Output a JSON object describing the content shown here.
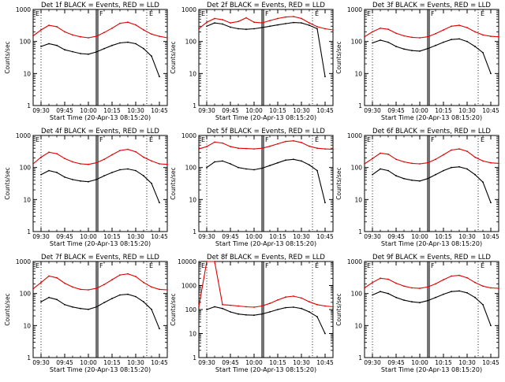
{
  "figure": {
    "x_tick_labels": [
      "09:30",
      "09:45",
      "10:00",
      "10:15",
      "10:30",
      "10:45"
    ],
    "y_tick_labels": [
      "1",
      "10",
      "100",
      "1000"
    ],
    "panel_y_tick_labels": [
      [
        "1",
        "10",
        "100",
        "1000"
      ],
      [
        "1",
        "10",
        "100",
        "1000"
      ],
      [
        "1",
        "10",
        "100",
        "1000"
      ],
      [
        "1",
        "10",
        "100",
        "1000"
      ],
      [
        "1",
        "10",
        "100",
        "1000"
      ],
      [
        "1",
        "10",
        "100",
        "1000"
      ],
      [
        "1",
        "10",
        "100",
        "1000"
      ],
      [
        "1",
        "10",
        "100",
        "1000",
        "10000"
      ],
      [
        "1",
        "10",
        "100",
        "1000"
      ]
    ],
    "xlabel": "Start Time (20-Apr-13 08:15:20)",
    "ylabel": "Counts/sec",
    "colors": {
      "events": "#000000",
      "lld": "#e00000",
      "axes": "#000000",
      "background": "#ffffff"
    }
  },
  "chart_data": [
    {
      "type": "line",
      "title": "Det 1f BLACK = Events, RED = LLD",
      "yscale": "log",
      "ylim": [
        1,
        1000
      ],
      "x_ticks": [
        "09:30",
        "09:45",
        "10:00",
        "10:15",
        "10:30",
        "10:45"
      ],
      "x": [
        "09:25",
        "09:30",
        "09:35",
        "09:40",
        "09:45",
        "09:50",
        "09:55",
        "10:00",
        "10:05",
        "10:10",
        "10:15",
        "10:20",
        "10:25",
        "10:30",
        "10:35",
        "10:40",
        "10:45",
        "10:50"
      ],
      "series": [
        {
          "name": "Events",
          "color": "#000000",
          "values": [
            null,
            70,
            85,
            75,
            55,
            48,
            42,
            40,
            47,
            60,
            75,
            90,
            95,
            85,
            60,
            35,
            8,
            null
          ]
        },
        {
          "name": "LLD",
          "color": "#e00000",
          "values": [
            150,
            230,
            320,
            290,
            200,
            160,
            140,
            130,
            145,
            190,
            260,
            370,
            400,
            330,
            230,
            170,
            145,
            130
          ]
        }
      ],
      "markers": {
        "dotted_vertical": [
          "09:30",
          "10:37"
        ],
        "solid_vertical": [
          "10:05",
          "10:06"
        ],
        "corner_labels": [
          "E",
          "F",
          "E"
        ]
      }
    },
    {
      "type": "line",
      "title": "Det 2f BLACK = Events, RED = LLD",
      "yscale": "log",
      "ylim": [
        1,
        1000
      ],
      "x_ticks": [
        "09:30",
        "09:45",
        "10:00",
        "10:15",
        "10:30",
        "10:45"
      ],
      "x": [
        "09:25",
        "09:30",
        "09:35",
        "09:40",
        "09:45",
        "09:50",
        "09:55",
        "10:00",
        "10:05",
        "10:10",
        "10:15",
        "10:20",
        "10:25",
        "10:30",
        "10:35",
        "10:40",
        "10:45",
        "10:50"
      ],
      "series": [
        {
          "name": "Events",
          "color": "#000000",
          "values": [
            null,
            300,
            380,
            350,
            280,
            250,
            240,
            250,
            270,
            300,
            330,
            360,
            390,
            380,
            320,
            250,
            8,
            null
          ]
        },
        {
          "name": "LLD",
          "color": "#e00000",
          "values": [
            250,
            400,
            520,
            480,
            380,
            420,
            550,
            400,
            380,
            450,
            520,
            580,
            600,
            520,
            380,
            290,
            250,
            230
          ]
        }
      ],
      "markers": {
        "dotted_vertical": [
          "09:30",
          "10:37"
        ],
        "solid_vertical": [
          "10:05",
          "10:06"
        ],
        "corner_labels": [
          "E",
          "F",
          "E"
        ]
      }
    },
    {
      "type": "line",
      "title": "Det 3f BLACK = Events, RED = LLD",
      "yscale": "log",
      "ylim": [
        1,
        1000
      ],
      "x_ticks": [
        "09:30",
        "09:45",
        "10:00",
        "10:15",
        "10:30",
        "10:45"
      ],
      "x": [
        "09:25",
        "09:30",
        "09:35",
        "09:40",
        "09:45",
        "09:50",
        "09:55",
        "10:00",
        "10:05",
        "10:10",
        "10:15",
        "10:20",
        "10:25",
        "10:30",
        "10:35",
        "10:40",
        "10:45",
        "10:50"
      ],
      "series": [
        {
          "name": "Events",
          "color": "#000000",
          "values": [
            null,
            90,
            110,
            95,
            70,
            58,
            52,
            50,
            60,
            75,
            95,
            115,
            120,
            100,
            70,
            45,
            10,
            null
          ]
        },
        {
          "name": "LLD",
          "color": "#e00000",
          "values": [
            140,
            200,
            260,
            240,
            180,
            150,
            135,
            130,
            140,
            175,
            230,
            300,
            320,
            270,
            200,
            160,
            145,
            140
          ]
        }
      ],
      "markers": {
        "dotted_vertical": [
          "09:30",
          "10:37"
        ],
        "solid_vertical": [
          "10:05",
          "10:06"
        ],
        "corner_labels": [
          "E",
          "F",
          "E"
        ]
      }
    },
    {
      "type": "line",
      "title": "Det 4f BLACK = Events, RED = LLD",
      "yscale": "log",
      "ylim": [
        1,
        1000
      ],
      "x_ticks": [
        "09:30",
        "09:45",
        "10:00",
        "10:15",
        "10:30",
        "10:45"
      ],
      "x": [
        "09:25",
        "09:30",
        "09:35",
        "09:40",
        "09:45",
        "09:50",
        "09:55",
        "10:00",
        "10:05",
        "10:10",
        "10:15",
        "10:20",
        "10:25",
        "10:30",
        "10:35",
        "10:40",
        "10:45",
        "10:50"
      ],
      "series": [
        {
          "name": "Events",
          "color": "#000000",
          "values": [
            null,
            60,
            80,
            70,
            50,
            42,
            38,
            36,
            42,
            55,
            70,
            85,
            90,
            80,
            55,
            32,
            8,
            null
          ]
        },
        {
          "name": "LLD",
          "color": "#e00000",
          "values": [
            130,
            210,
            300,
            270,
            190,
            150,
            130,
            125,
            140,
            180,
            250,
            340,
            370,
            310,
            210,
            160,
            130,
            125
          ]
        }
      ],
      "markers": {
        "dotted_vertical": [
          "09:30",
          "10:37"
        ],
        "solid_vertical": [
          "10:05",
          "10:06"
        ],
        "corner_labels": [
          "E",
          "F",
          "E"
        ]
      }
    },
    {
      "type": "line",
      "title": "Det 5f BLACK = Events, RED = LLD",
      "yscale": "log",
      "ylim": [
        1,
        1000
      ],
      "x_ticks": [
        "09:30",
        "09:45",
        "10:00",
        "10:15",
        "10:30",
        "10:45"
      ],
      "x": [
        "09:25",
        "09:30",
        "09:35",
        "09:40",
        "09:45",
        "09:50",
        "09:55",
        "10:00",
        "10:05",
        "10:10",
        "10:15",
        "10:20",
        "10:25",
        "10:30",
        "10:35",
        "10:40",
        "10:45",
        "10:50"
      ],
      "series": [
        {
          "name": "Events",
          "color": "#000000",
          "values": [
            null,
            100,
            150,
            160,
            130,
            100,
            90,
            85,
            95,
            115,
            140,
            170,
            180,
            160,
            120,
            80,
            8,
            null
          ]
        },
        {
          "name": "LLD",
          "color": "#e00000",
          "values": [
            380,
            450,
            620,
            580,
            450,
            400,
            390,
            380,
            400,
            460,
            550,
            650,
            680,
            600,
            460,
            400,
            380,
            370
          ]
        }
      ],
      "markers": {
        "dotted_vertical": [
          "09:30",
          "10:37"
        ],
        "solid_vertical": [
          "10:05",
          "10:06"
        ],
        "corner_labels": [
          "E",
          "F",
          "E"
        ]
      }
    },
    {
      "type": "line",
      "title": "Det 6f BLACK = Events, RED = LLD",
      "yscale": "log",
      "ylim": [
        1,
        1000
      ],
      "x_ticks": [
        "09:30",
        "09:45",
        "10:00",
        "10:15",
        "10:30",
        "10:45"
      ],
      "x": [
        "09:25",
        "09:30",
        "09:35",
        "09:40",
        "09:45",
        "09:50",
        "09:55",
        "10:00",
        "10:05",
        "10:10",
        "10:15",
        "10:20",
        "10:25",
        "10:30",
        "10:35",
        "10:40",
        "10:45",
        "10:50"
      ],
      "series": [
        {
          "name": "Events",
          "color": "#000000",
          "values": [
            null,
            60,
            90,
            80,
            55,
            45,
            40,
            38,
            45,
            60,
            80,
            100,
            105,
            90,
            60,
            35,
            8,
            null
          ]
        },
        {
          "name": "LLD",
          "color": "#e00000",
          "values": [
            130,
            190,
            280,
            260,
            180,
            150,
            135,
            130,
            140,
            180,
            250,
            350,
            380,
            320,
            210,
            160,
            140,
            135
          ]
        }
      ],
      "markers": {
        "dotted_vertical": [
          "09:30",
          "10:37"
        ],
        "solid_vertical": [
          "10:05",
          "10:06"
        ],
        "corner_labels": [
          "E",
          "F",
          "E"
        ]
      }
    },
    {
      "type": "line",
      "title": "Det 7f BLACK = Events, RED = LLD",
      "yscale": "log",
      "ylim": [
        1,
        1000
      ],
      "x_ticks": [
        "09:30",
        "09:45",
        "10:00",
        "10:15",
        "10:30",
        "10:45"
      ],
      "x": [
        "09:25",
        "09:30",
        "09:35",
        "09:40",
        "09:45",
        "09:50",
        "09:55",
        "10:00",
        "10:05",
        "10:10",
        "10:15",
        "10:20",
        "10:25",
        "10:30",
        "10:35",
        "10:40",
        "10:45",
        "10:50"
      ],
      "series": [
        {
          "name": "Events",
          "color": "#000000",
          "values": [
            null,
            55,
            75,
            65,
            45,
            38,
            34,
            32,
            38,
            52,
            70,
            90,
            95,
            80,
            55,
            32,
            8,
            null
          ]
        },
        {
          "name": "LLD",
          "color": "#e00000",
          "values": [
            140,
            220,
            350,
            310,
            210,
            160,
            135,
            130,
            145,
            190,
            270,
            380,
            410,
            340,
            220,
            160,
            135,
            130
          ]
        }
      ],
      "markers": {
        "dotted_vertical": [
          "09:30",
          "10:37"
        ],
        "solid_vertical": [
          "10:05",
          "10:06"
        ],
        "corner_labels": [
          "E",
          "F",
          "E"
        ]
      }
    },
    {
      "type": "line",
      "title": "Det 8f BLACK = Events, RED = LLD",
      "yscale": "log",
      "ylim": [
        1,
        10000
      ],
      "x_ticks": [
        "09:30",
        "09:45",
        "10:00",
        "10:15",
        "10:30",
        "10:45"
      ],
      "x": [
        "09:25",
        "09:30",
        "09:35",
        "09:40",
        "09:45",
        "09:50",
        "09:55",
        "10:00",
        "10:05",
        "10:10",
        "10:15",
        "10:20",
        "10:25",
        "10:30",
        "10:35",
        "10:40",
        "10:45",
        "10:50"
      ],
      "series": [
        {
          "name": "Events",
          "color": "#000000",
          "values": [
            null,
            100,
            130,
            110,
            80,
            65,
            60,
            58,
            65,
            80,
            100,
            120,
            125,
            110,
            80,
            50,
            10,
            null
          ]
        },
        {
          "name": "LLD",
          "color": "#e00000",
          "values": [
            130,
            10000,
            10000,
            160,
            150,
            140,
            130,
            125,
            140,
            180,
            250,
            330,
            360,
            300,
            210,
            160,
            140,
            130
          ]
        }
      ],
      "markers": {
        "dotted_vertical": [
          "09:30",
          "10:37"
        ],
        "solid_vertical": [
          "10:05",
          "10:06"
        ],
        "corner_labels": [
          "E",
          "F",
          "E"
        ]
      }
    },
    {
      "type": "line",
      "title": "Det 9f BLACK = Events, RED = LLD",
      "yscale": "log",
      "ylim": [
        1,
        1000
      ],
      "x_ticks": [
        "09:30",
        "09:45",
        "10:00",
        "10:15",
        "10:30",
        "10:45"
      ],
      "x": [
        "09:25",
        "09:30",
        "09:35",
        "09:40",
        "09:45",
        "09:50",
        "09:55",
        "10:00",
        "10:05",
        "10:10",
        "10:15",
        "10:20",
        "10:25",
        "10:30",
        "10:35",
        "10:40",
        "10:45",
        "10:50"
      ],
      "series": [
        {
          "name": "Events",
          "color": "#000000",
          "values": [
            null,
            90,
            115,
            100,
            75,
            62,
            55,
            52,
            60,
            75,
            95,
            115,
            120,
            105,
            75,
            45,
            10,
            null
          ]
        },
        {
          "name": "LLD",
          "color": "#e00000",
          "values": [
            150,
            220,
            300,
            280,
            210,
            170,
            150,
            145,
            160,
            200,
            270,
            350,
            370,
            310,
            220,
            170,
            150,
            145
          ]
        }
      ],
      "markers": {
        "dotted_vertical": [
          "09:30",
          "10:37"
        ],
        "solid_vertical": [
          "10:05",
          "10:06"
        ],
        "corner_labels": [
          "E",
          "F",
          "E"
        ]
      }
    }
  ]
}
